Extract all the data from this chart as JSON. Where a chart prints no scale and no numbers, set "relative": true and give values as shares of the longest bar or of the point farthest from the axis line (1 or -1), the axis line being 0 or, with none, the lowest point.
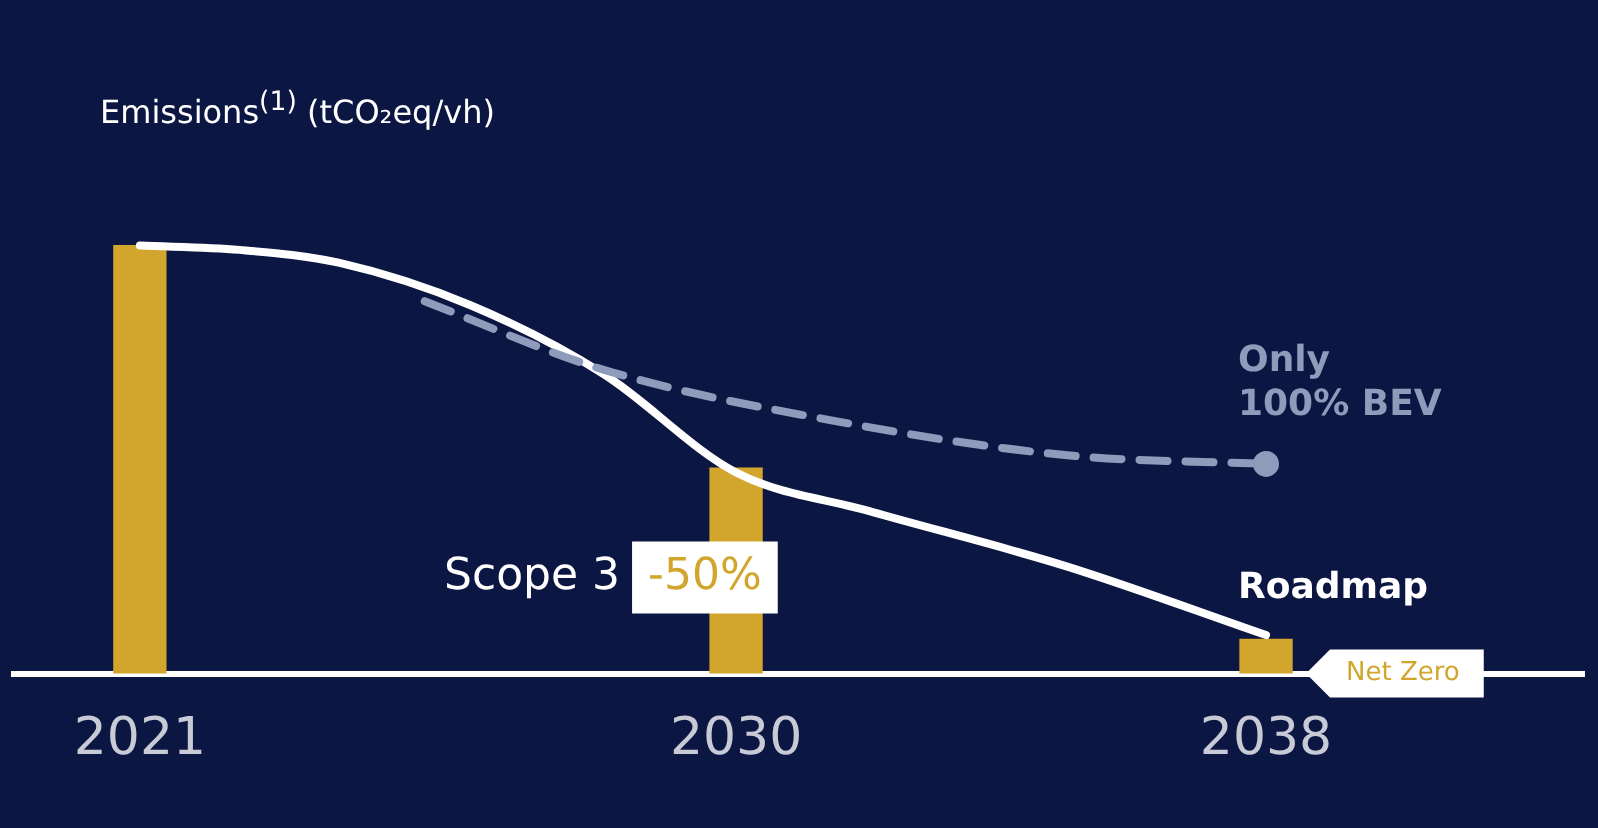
{
  "chart_data": {
    "type": "bar",
    "title": "Emissions$^{(1)}$ (tCO₂eq/vh)",
    "relative": true,
    "xlim": [
      2019.1,
      2042.8
    ],
    "xticks": [
      2021,
      2030,
      2038
    ],
    "series": [
      {
        "color": "#d2a62c",
        "x": [
          2021,
          2030,
          2038
        ],
        "values": [
          1,
          0.48,
          0.08
        ]
      },
      {
        "type": "line",
        "name": "Only 100% BEV",
        "color": "#8f9bbb",
        "line_style": "dashed",
        "marker": "none",
        "x": [
          2025.3,
          2028,
          2031.5,
          2035,
          2038
        ],
        "values": [
          0.87,
          0.71,
          0.59,
          0.51,
          0.49
        ]
      },
      {
        "type": "scatter",
        "color": "#8f9bbb",
        "marker": "circle",
        "x": [
          2038
        ],
        "values": [
          0.49
        ]
      },
      {
        "type": "line",
        "name": "Roadmap",
        "color": "#ffffff",
        "line_style": "solid",
        "marker": "none",
        "x": [
          2021,
          2022.5,
          2024,
          2026,
          2028,
          2030,
          2032,
          2035,
          2038
        ],
        "values": [
          1,
          0.99,
          0.96,
          0.86,
          0.7,
          0.47,
          0.38,
          0.25,
          0.09
        ]
      }
    ],
    "annotations": [
      "Scope 3",
      "-50%",
      "Net Zero"
    ],
    "grid": false,
    "legend": false
  }
}
